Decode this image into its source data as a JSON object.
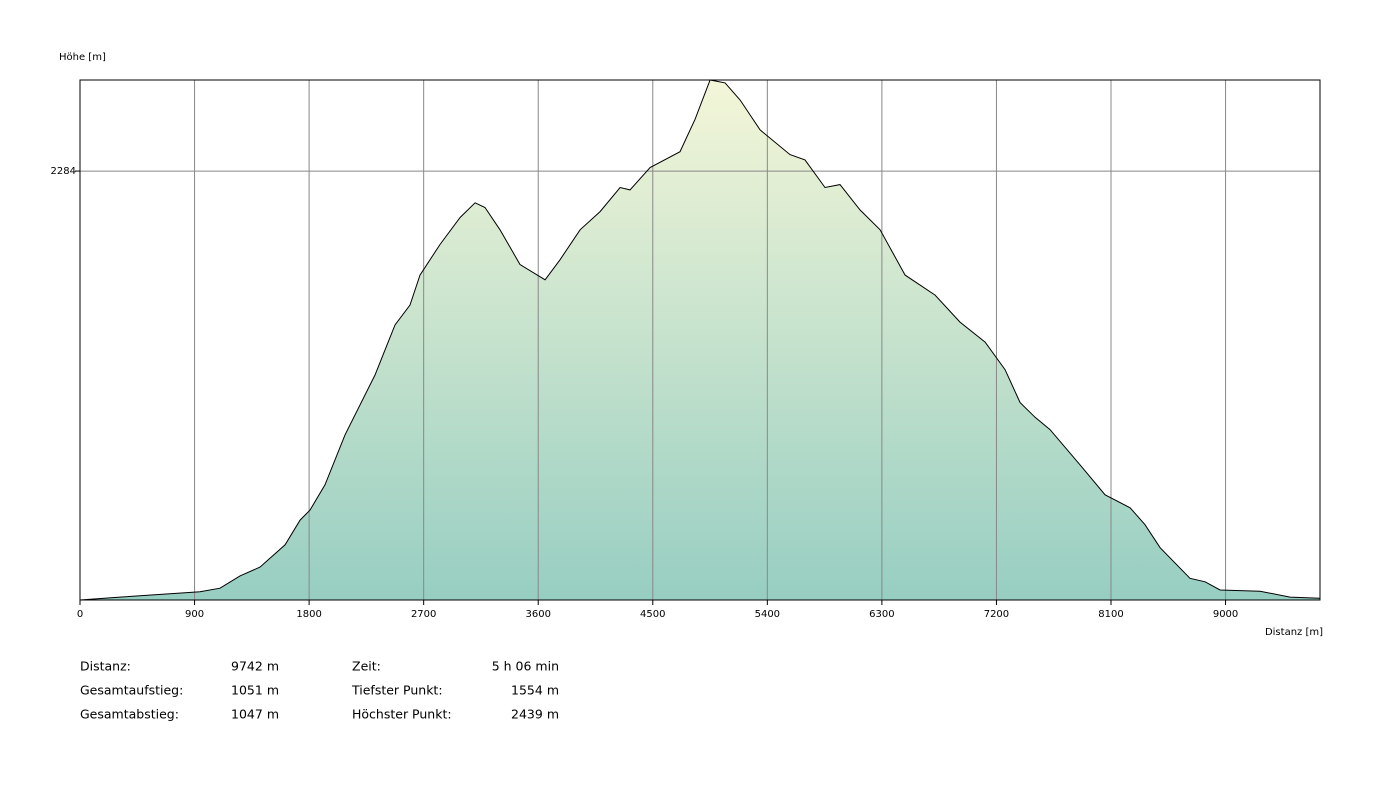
{
  "chart_data": {
    "type": "area",
    "y_label": "Höhe [m]",
    "x_label": "Distanz [m]",
    "x": [
      0,
      314,
      943,
      1100,
      1257,
      1414,
      1611,
      1729,
      1807,
      1925,
      2082,
      2318,
      2475,
      2593,
      2671,
      2828,
      2986,
      3104,
      3182,
      3300,
      3457,
      3654,
      3771,
      3929,
      4086,
      4243,
      4321,
      4479,
      4714,
      4832,
      4950,
      5068,
      5186,
      5343,
      5578,
      5696,
      5853,
      5971,
      6128,
      6286,
      6482,
      6718,
      6914,
      7111,
      7268,
      7386,
      7504,
      7621,
      7857,
      8054,
      8250,
      8368,
      8486,
      8721,
      8839,
      8957,
      9271,
      9507,
      9742
    ],
    "values": [
      1554,
      1559,
      1568,
      1574,
      1595,
      1610,
      1648,
      1690,
      1707,
      1750,
      1835,
      1937,
      2022,
      2056,
      2107,
      2159,
      2205,
      2230,
      2222,
      2184,
      2125,
      2099,
      2133,
      2184,
      2215,
      2256,
      2252,
      2290,
      2317,
      2372,
      2439,
      2434,
      2405,
      2354,
      2312,
      2303,
      2256,
      2261,
      2218,
      2184,
      2107,
      2073,
      2027,
      1993,
      1946,
      1890,
      1865,
      1844,
      1784,
      1733,
      1711,
      1682,
      1643,
      1591,
      1585,
      1571,
      1569,
      1559,
      1557
    ],
    "color": "#000000",
    "fill_colors": [
      "#f4f6d8",
      "#97cec2"
    ],
    "xlim": [
      0,
      9742
    ],
    "xticks": [
      0,
      900,
      1800,
      2700,
      3600,
      4500,
      5400,
      6300,
      7200,
      8100,
      9000
    ],
    "ylim": [
      1554,
      2439
    ],
    "yticks": [
      2284
    ],
    "grid": true
  },
  "stats": [
    [
      {
        "label": "Distanz:",
        "value": "9742 m"
      },
      {
        "label": "Zeit:",
        "value": "5 h 06 min"
      }
    ],
    [
      {
        "label": "Gesamtaufstieg:",
        "value": "1051 m"
      },
      {
        "label": "Tiefster Punkt:",
        "value": "1554 m"
      }
    ],
    [
      {
        "label": "Gesamtabstieg:",
        "value": "1047 m"
      },
      {
        "label": "Höchster Punkt:",
        "value": "2439 m"
      }
    ]
  ]
}
